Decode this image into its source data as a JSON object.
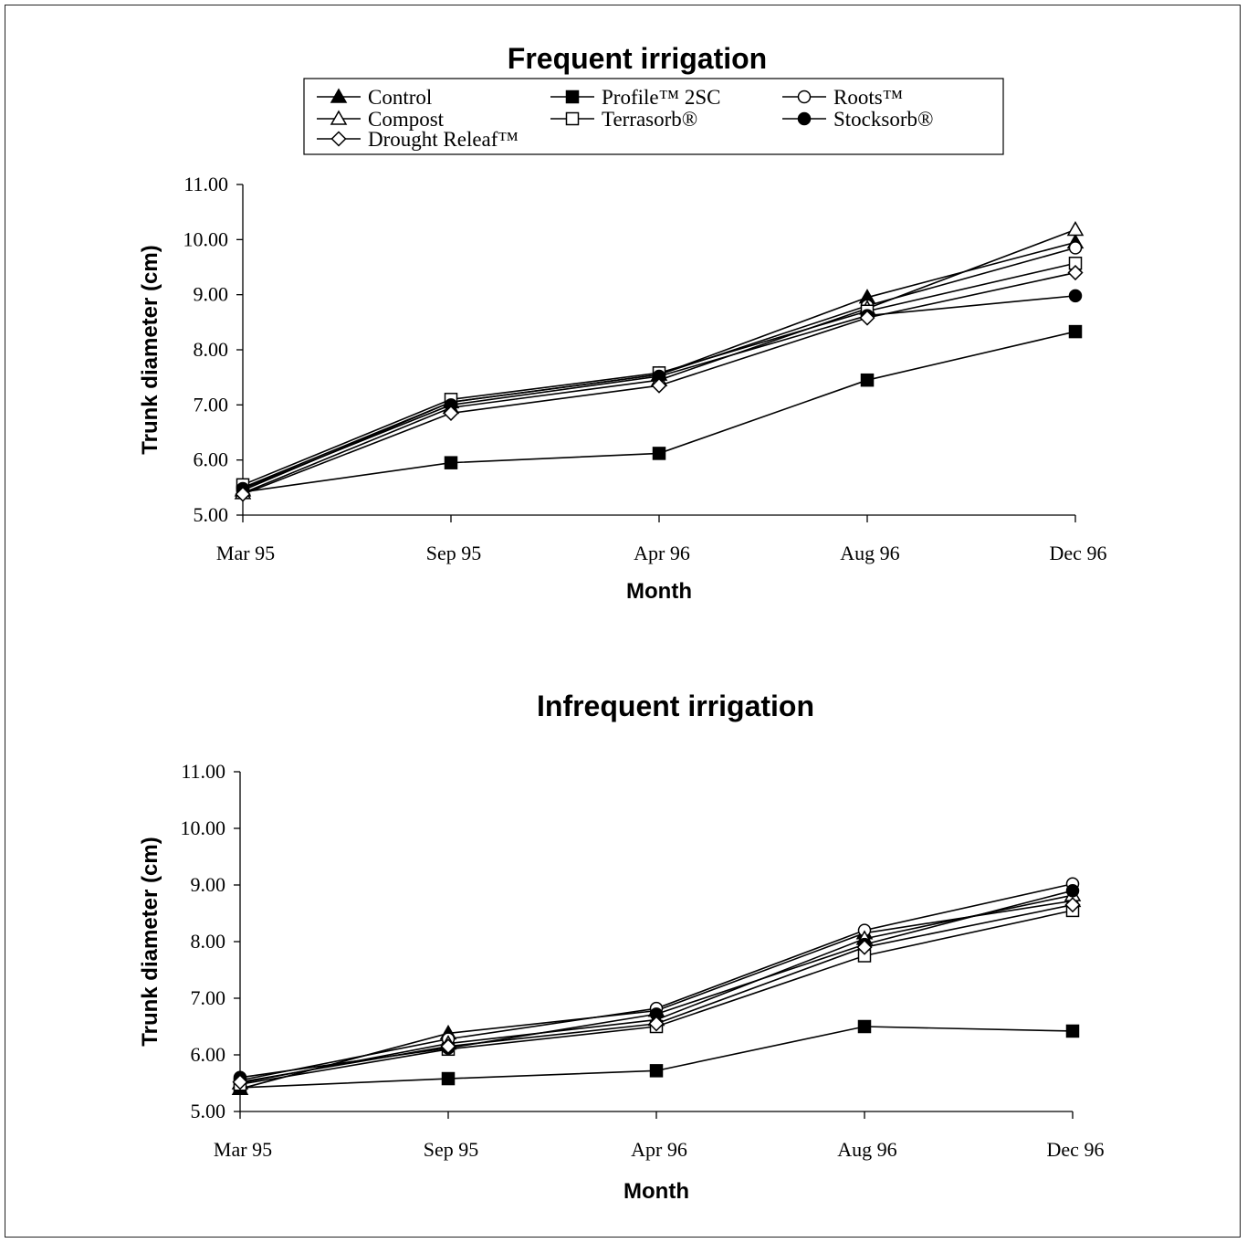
{
  "chart_data": [
    {
      "type": "line",
      "title": "Frequent irrigation",
      "xlabel": "Month",
      "ylabel": "Trunk diameter (cm)",
      "categories": [
        "Mar 95",
        "Sep 95",
        "Apr 96",
        "Aug 96",
        "Dec 96"
      ],
      "ylim": [
        5.0,
        11.0
      ],
      "yticks": [
        "5.00",
        "6.00",
        "7.00",
        "8.00",
        "9.00",
        "10.00",
        "11.00"
      ],
      "legend": "top-center",
      "series": [
        {
          "name": "Control",
          "marker": "triangle-filled",
          "values": [
            5.45,
            7.05,
            7.55,
            8.95,
            9.95
          ]
        },
        {
          "name": "Profile™ 2SC",
          "marker": "square-filled",
          "values": [
            5.42,
            5.95,
            6.12,
            7.45,
            8.33
          ]
        },
        {
          "name": "Roots™",
          "marker": "circle-open",
          "values": [
            5.5,
            7.05,
            7.55,
            8.8,
            9.85
          ]
        },
        {
          "name": "Compost",
          "marker": "triangle-open",
          "values": [
            5.4,
            6.95,
            7.45,
            8.75,
            10.18
          ]
        },
        {
          "name": "Terrasorb®",
          "marker": "square-open",
          "values": [
            5.55,
            7.1,
            7.58,
            8.7,
            9.57
          ]
        },
        {
          "name": "Stocksorb®",
          "marker": "circle-filled",
          "values": [
            5.48,
            7.0,
            7.52,
            8.62,
            8.98
          ]
        },
        {
          "name": "Drought Releaf™",
          "marker": "diamond-open",
          "values": [
            5.38,
            6.85,
            7.35,
            8.58,
            9.4
          ]
        }
      ]
    },
    {
      "type": "line",
      "title": "Infrequent irrigation",
      "xlabel": "Month",
      "ylabel": "Trunk diameter (cm)",
      "categories": [
        "Mar 95",
        "Sep 95",
        "Apr 96",
        "Aug 96",
        "Dec 96"
      ],
      "ylim": [
        5.0,
        11.0
      ],
      "yticks": [
        "5.00",
        "6.00",
        "7.00",
        "8.00",
        "9.00",
        "10.00",
        "11.00"
      ],
      "series": [
        {
          "name": "Control",
          "marker": "triangle-filled",
          "values": [
            5.4,
            6.38,
            6.78,
            8.15,
            8.72
          ]
        },
        {
          "name": "Profile™ 2SC",
          "marker": "square-filled",
          "values": [
            5.42,
            5.58,
            5.72,
            6.5,
            6.42
          ]
        },
        {
          "name": "Roots™",
          "marker": "circle-open",
          "values": [
            5.55,
            6.28,
            6.82,
            8.2,
            9.02
          ]
        },
        {
          "name": "Compost",
          "marker": "triangle-open",
          "values": [
            5.5,
            6.2,
            6.62,
            8.05,
            8.82
          ]
        },
        {
          "name": "Terrasorb®",
          "marker": "square-open",
          "values": [
            5.48,
            6.1,
            6.5,
            7.75,
            8.55
          ]
        },
        {
          "name": "Stocksorb®",
          "marker": "circle-filled",
          "values": [
            5.6,
            6.12,
            6.72,
            7.95,
            8.9
          ]
        },
        {
          "name": "Drought Releaf™",
          "marker": "diamond-open",
          "values": [
            5.52,
            6.15,
            6.55,
            7.9,
            8.65
          ]
        }
      ]
    }
  ]
}
